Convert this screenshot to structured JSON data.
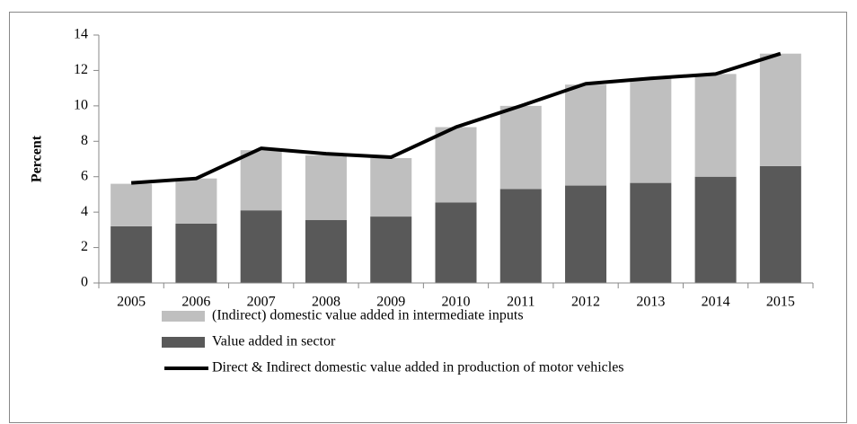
{
  "chart_data": {
    "type": "bar",
    "y_label": "Percent",
    "categories": [
      "2005",
      "2006",
      "2007",
      "2008",
      "2009",
      "2010",
      "2011",
      "2012",
      "2013",
      "2014",
      "2015"
    ],
    "series": [
      {
        "name": "(Indirect) domestic value added in intermediate inputs",
        "type": "bar",
        "color": "#bfbfbf",
        "values": [
          2.4,
          2.55,
          3.4,
          3.65,
          3.3,
          4.25,
          4.7,
          5.7,
          5.9,
          5.8,
          6.35
        ]
      },
      {
        "name": "Value added in sector",
        "type": "bar",
        "color": "#595959",
        "values": [
          3.2,
          3.35,
          4.1,
          3.55,
          3.75,
          4.55,
          5.3,
          5.5,
          5.65,
          6.0,
          6.6
        ]
      },
      {
        "name": "Direct & Indirect domestic value added in production of motor vehicles",
        "type": "line",
        "color": "#000000",
        "values": [
          5.65,
          5.9,
          7.6,
          7.3,
          7.1,
          8.8,
          10.0,
          11.25,
          11.55,
          11.8,
          12.95
        ]
      }
    ],
    "ylim": [
      0,
      14
    ],
    "yticks": [
      0,
      2,
      4,
      6,
      8,
      10,
      12,
      14
    ],
    "grid": false,
    "legend": "bottom"
  }
}
